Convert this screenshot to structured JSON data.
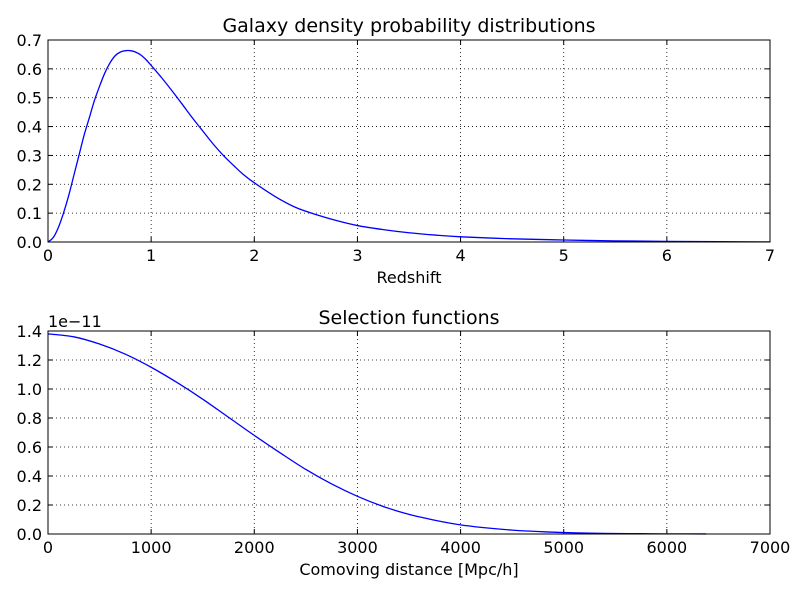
{
  "chart_data": [
    {
      "type": "line",
      "title": "Galaxy density probability distributions",
      "xlabel": "Redshift",
      "ylabel": "",
      "xlim": [
        0,
        7
      ],
      "ylim": [
        0,
        0.7
      ],
      "xticks": [
        "0",
        "1",
        "2",
        "3",
        "4",
        "5",
        "6",
        "7"
      ],
      "yticks": [
        "0.0",
        "0.1",
        "0.2",
        "0.3",
        "0.4",
        "0.5",
        "0.6",
        "0.7"
      ],
      "grid": true,
      "color": "#0000ff",
      "x": [
        0,
        0.05,
        0.1,
        0.15,
        0.2,
        0.25,
        0.3,
        0.35,
        0.4,
        0.45,
        0.5,
        0.55,
        0.6,
        0.65,
        0.7,
        0.75,
        0.8,
        0.85,
        0.9,
        0.95,
        1.0,
        1.1,
        1.2,
        1.3,
        1.4,
        1.5,
        1.6,
        1.7,
        1.8,
        1.9,
        2.0,
        2.2,
        2.4,
        2.6,
        2.8,
        3.0,
        3.25,
        3.5,
        3.75,
        4.0,
        4.5,
        5.0,
        5.5,
        6.0,
        6.5,
        7.0
      ],
      "y": [
        0,
        0.015,
        0.05,
        0.1,
        0.16,
        0.23,
        0.3,
        0.37,
        0.43,
        0.49,
        0.54,
        0.585,
        0.62,
        0.645,
        0.658,
        0.663,
        0.663,
        0.658,
        0.648,
        0.632,
        0.612,
        0.57,
        0.525,
        0.478,
        0.43,
        0.385,
        0.34,
        0.3,
        0.265,
        0.232,
        0.205,
        0.158,
        0.12,
        0.095,
        0.074,
        0.057,
        0.043,
        0.032,
        0.024,
        0.018,
        0.011,
        0.007,
        0.004,
        0.002,
        0.001,
        0.0005
      ]
    },
    {
      "type": "line",
      "title": "Selection functions",
      "xlabel": "Comoving distance [Mpc/h]",
      "ylabel": "",
      "xlim": [
        0,
        7000
      ],
      "ylim": [
        0,
        1.4
      ],
      "offset_label": "1e−11",
      "xticks": [
        "0",
        "1000",
        "2000",
        "3000",
        "4000",
        "5000",
        "6000",
        "7000"
      ],
      "yticks": [
        "0.0",
        "0.2",
        "0.4",
        "0.6",
        "0.8",
        "1.0",
        "1.2",
        "1.4"
      ],
      "grid": true,
      "color": "#0000ff",
      "x": [
        0,
        250,
        500,
        750,
        1000,
        1250,
        1500,
        1750,
        2000,
        2250,
        2500,
        2750,
        3000,
        3250,
        3500,
        3750,
        4000,
        4250,
        4500,
        4750,
        5000,
        5250,
        5500,
        5750,
        6000,
        6380
      ],
      "y": [
        1.38,
        1.36,
        1.31,
        1.24,
        1.15,
        1.045,
        0.93,
        0.805,
        0.68,
        0.56,
        0.445,
        0.345,
        0.26,
        0.19,
        0.135,
        0.095,
        0.063,
        0.042,
        0.027,
        0.017,
        0.01,
        0.006,
        0.0035,
        0.002,
        0.001,
        0.0003
      ]
    }
  ]
}
